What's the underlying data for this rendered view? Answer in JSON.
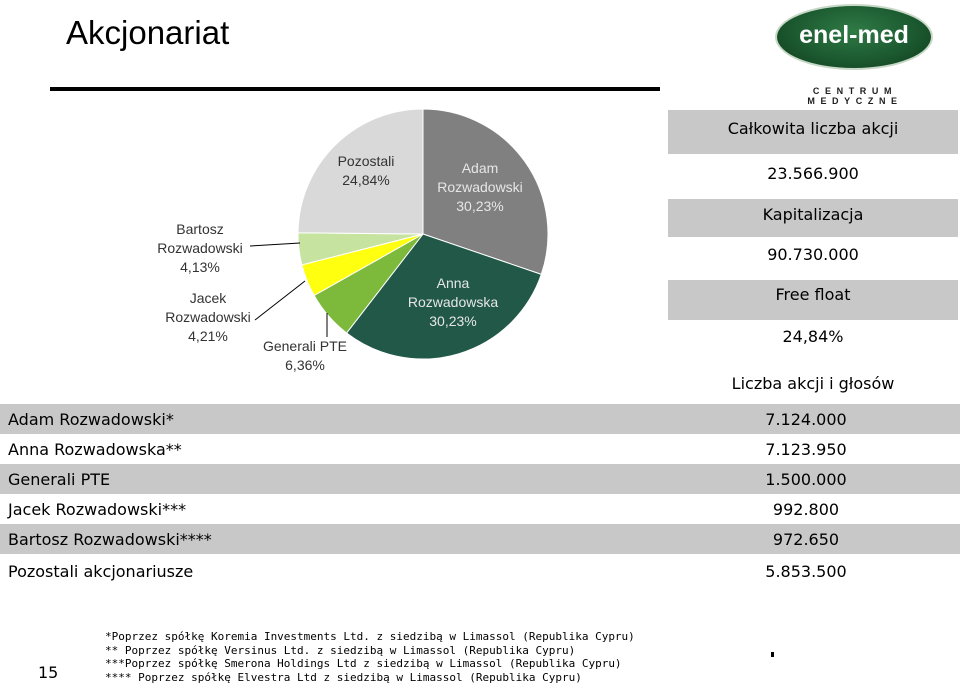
{
  "header": {
    "title": "Akcjonariat"
  },
  "logo": {
    "name": "enel-med",
    "tagline": "CENTRUM MEDYCZNE"
  },
  "chart_data": {
    "type": "pie",
    "slices": [
      {
        "label_lines": [
          "Adam",
          "Rozwadowski",
          "30,23%"
        ],
        "name": "Adam Rozwadowski",
        "value": 30.23,
        "color": "#808080"
      },
      {
        "label_lines": [
          "Anna",
          "Rozwadowska",
          "30,23%"
        ],
        "name": "Anna Rozwadowska",
        "value": 30.23,
        "color": "#215848"
      },
      {
        "label_lines": [
          "Generali PTE",
          "6,36%"
        ],
        "name": "Generali PTE",
        "value": 6.36,
        "color": "#7dba3c"
      },
      {
        "label_lines": [
          "Jacek",
          "Rozwadowski",
          "4,21%"
        ],
        "name": "Jacek Rozwadowski",
        "value": 4.21,
        "color": "#ffff10"
      },
      {
        "label_lines": [
          "Bartosz",
          "Rozwadowski",
          "4,13%"
        ],
        "name": "Bartosz Rozwadowski",
        "value": 4.13,
        "color": "#c6e3a0"
      },
      {
        "label_lines": [
          "Pozostali",
          "24,84%"
        ],
        "name": "Pozostali",
        "value": 24.84,
        "color": "#d9d9d9"
      }
    ]
  },
  "stats": {
    "total_shares_label": "Całkowita liczba akcji",
    "total_shares_value": "23.566.900",
    "market_cap_label": "Kapitalizacja",
    "market_cap_value": "90.730.000",
    "free_float_label": "Free float",
    "free_float_value": "24,84%"
  },
  "shareholders": {
    "header": "Liczba akcji i głosów",
    "rows": [
      {
        "name": "Adam Rozwadowski*",
        "value": "7.124.000"
      },
      {
        "name": "Anna Rozwadowska**",
        "value": "7.123.950"
      },
      {
        "name": "Generali PTE",
        "value": "1.500.000"
      },
      {
        "name": "Jacek Rozwadowski***",
        "value": "992.800"
      },
      {
        "name": "Bartosz Rozwadowski****",
        "value": "972.650"
      },
      {
        "name": "Pozostali akcjonariusze",
        "value": "5.853.500"
      }
    ]
  },
  "footnotes": [
    "*Poprzez spółkę Koremia Investments Ltd. z siedzibą w Limassol (Republika Cypru)",
    "** Poprzez spółkę Versinus Ltd. z siedzibą w Limassol (Republika Cypru)",
    "***Poprzez spółkę Smerona Holdings Ltd z siedzibą w Limassol (Republika Cypru)",
    "**** Poprzez spółkę Elvestra Ltd z siedzibą w Limassol (Republika Cypru)"
  ],
  "page_number": "15"
}
